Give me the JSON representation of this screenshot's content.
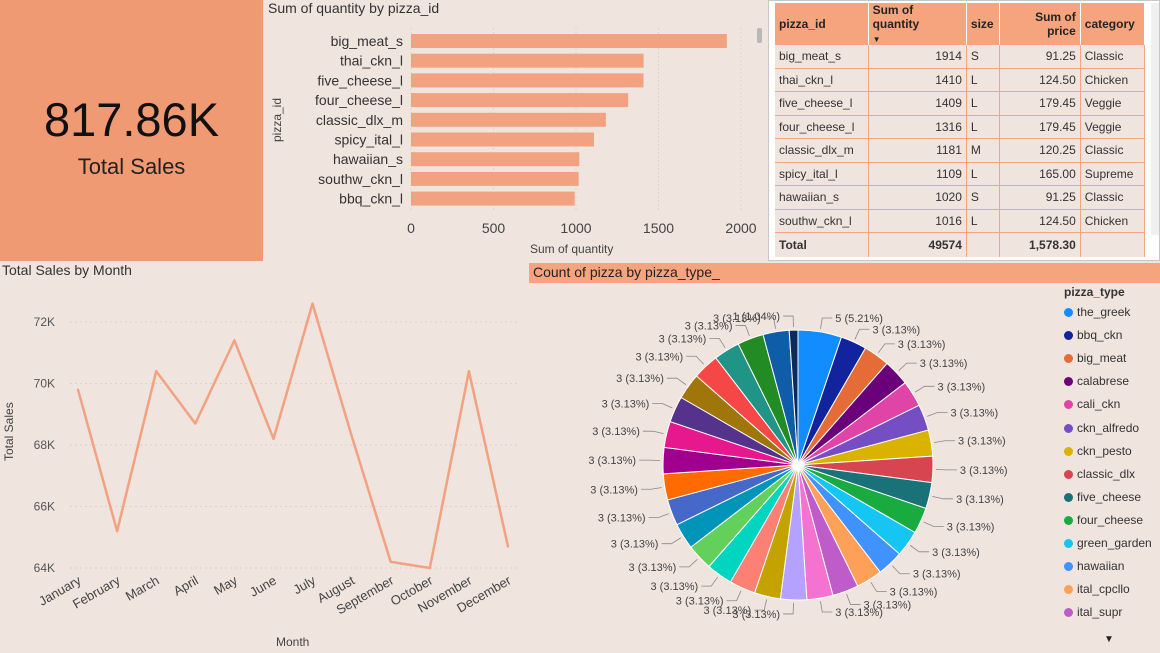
{
  "kpi": {
    "value": "817.86K",
    "label": "Total Sales"
  },
  "colors": {
    "accent": "#f09a73",
    "bar": "#f2a281",
    "line": "#f2a281",
    "header": "#f6a47e",
    "background": "#efe4de"
  },
  "bar_panel": {
    "title": "Sum of quantity by pizza_id"
  },
  "table": {
    "headers": [
      "pizza_id",
      "Sum of quantity",
      "size",
      "Sum of price",
      "category"
    ],
    "rows": [
      [
        "big_meat_s",
        "1914",
        "S",
        "91.25",
        "Classic"
      ],
      [
        "thai_ckn_l",
        "1410",
        "L",
        "124.50",
        "Chicken"
      ],
      [
        "five_cheese_l",
        "1409",
        "L",
        "179.45",
        "Veggie"
      ],
      [
        "four_cheese_l",
        "1316",
        "L",
        "179.45",
        "Veggie"
      ],
      [
        "classic_dlx_m",
        "1181",
        "M",
        "120.25",
        "Classic"
      ],
      [
        "spicy_ital_l",
        "1109",
        "L",
        "165.00",
        "Supreme"
      ],
      [
        "hawaiian_s",
        "1020",
        "S",
        "91.25",
        "Classic"
      ],
      [
        "southw_ckn_l",
        "1016",
        "L",
        "124.50",
        "Chicken"
      ]
    ],
    "total": {
      "label": "Total",
      "quantity": "49574",
      "price": "1,578.30"
    }
  },
  "line_panel": {
    "title": "Total Sales by Month"
  },
  "pie_panel": {
    "title": "Count of pizza by pizza_type_",
    "legend_title": "pizza_type",
    "legend_items": [
      {
        "name": "the_greek",
        "color": "#118dff"
      },
      {
        "name": "bbq_ckn",
        "color": "#12239e"
      },
      {
        "name": "big_meat",
        "color": "#e66c37"
      },
      {
        "name": "calabrese",
        "color": "#6b007b"
      },
      {
        "name": "cali_ckn",
        "color": "#e044a7"
      },
      {
        "name": "ckn_alfredo",
        "color": "#744ec2"
      },
      {
        "name": "ckn_pesto",
        "color": "#d9b300"
      },
      {
        "name": "classic_dlx",
        "color": "#d64550"
      },
      {
        "name": "five_cheese",
        "color": "#197278"
      },
      {
        "name": "four_cheese",
        "color": "#1aab40"
      },
      {
        "name": "green_garden",
        "color": "#15c6f4"
      },
      {
        "name": "hawaiian",
        "color": "#4092ff"
      },
      {
        "name": "ital_cpcllo",
        "color": "#ffa058"
      },
      {
        "name": "ital_supr",
        "color": "#be5dc9"
      }
    ]
  },
  "chart_data": [
    {
      "type": "bar",
      "title": "Sum of quantity by pizza_id",
      "xlabel": "Sum of quantity",
      "ylabel": "pizza_id",
      "categories": [
        "big_meat_s",
        "thai_ckn_l",
        "five_cheese_l",
        "four_cheese_l",
        "classic_dlx_m",
        "spicy_ital_l",
        "hawaiian_s",
        "southw_ckn_l",
        "bbq_ckn_l"
      ],
      "values": [
        1914,
        1410,
        1409,
        1316,
        1181,
        1109,
        1020,
        1016,
        992
      ],
      "xlim": [
        0,
        2000
      ],
      "xticks": [
        "0",
        "500",
        "1000",
        "1500",
        "2000"
      ],
      "grid": true
    },
    {
      "type": "line",
      "title": "Total Sales by Month",
      "xlabel": "Month",
      "ylabel": "Total Sales",
      "categories": [
        "January",
        "February",
        "March",
        "April",
        "May",
        "June",
        "July",
        "August",
        "September",
        "October",
        "November",
        "December"
      ],
      "values": [
        69800,
        65200,
        70400,
        68700,
        71400,
        68200,
        72600,
        68300,
        64200,
        64000,
        70400,
        64700
      ],
      "ylim": [
        64000,
        73000
      ],
      "yticks": [
        "64K",
        "66K",
        "68K",
        "70K",
        "72K"
      ],
      "grid": true
    },
    {
      "type": "pie",
      "title": "Count of pizza by pizza_type_",
      "slices": [
        {
          "value": 5,
          "label": "5 (5.21%)",
          "color": "#118dff"
        },
        {
          "value": 3,
          "label": "3 (3.13%)",
          "color": "#12239e"
        },
        {
          "value": 3,
          "label": "3 (3.13%)",
          "color": "#e66c37"
        },
        {
          "value": 3,
          "label": "3 (3.13%)",
          "color": "#6b007b"
        },
        {
          "value": 3,
          "label": "3 (3.13%)",
          "color": "#e044a7"
        },
        {
          "value": 3,
          "label": "3 (3.13%)",
          "color": "#744ec2"
        },
        {
          "value": 3,
          "label": "3 (3.13%)",
          "color": "#d9b300"
        },
        {
          "value": 3,
          "label": "3 (3.13%)",
          "color": "#d64550"
        },
        {
          "value": 3,
          "label": "3 (3.13%)",
          "color": "#197278"
        },
        {
          "value": 3,
          "label": "3 (3.13%)",
          "color": "#1aab40"
        },
        {
          "value": 3,
          "label": "3 (3.13%)",
          "color": "#15c6f4"
        },
        {
          "value": 3,
          "label": "3 (3.13%)",
          "color": "#4092ff"
        },
        {
          "value": 3,
          "label": "3 (3.13%)",
          "color": "#ffa058"
        },
        {
          "value": 3,
          "label": "3 (3.13%)",
          "color": "#be5dc9"
        },
        {
          "value": 3,
          "label": "3 (3.13%)",
          "color": "#f472d0"
        },
        {
          "value": 3,
          "label": "3 (3.13%)",
          "color": "#b5a1ff"
        },
        {
          "value": 3,
          "label": "3 (3.13%)",
          "color": "#c4a200"
        },
        {
          "value": 3,
          "label": "3 (3.13%)",
          "color": "#fd8074"
        },
        {
          "value": 3,
          "label": "3 (3.13%)",
          "color": "#00d5bf"
        },
        {
          "value": 3,
          "label": "3 (3.13%)",
          "color": "#62d05b"
        },
        {
          "value": 3,
          "label": "3 (3.13%)",
          "color": "#0094b8"
        },
        {
          "value": 3,
          "label": "3 (3.13%)",
          "color": "#4568c9"
        },
        {
          "value": 3,
          "label": "3 (3.13%)",
          "color": "#ff6b00"
        },
        {
          "value": 3,
          "label": "3 (3.13%)",
          "color": "#a0008d"
        },
        {
          "value": 3,
          "label": "3 (3.13%)",
          "color": "#e7178e"
        },
        {
          "value": 3,
          "label": "3 (3.13%)",
          "color": "#55328c"
        },
        {
          "value": 3,
          "label": "3 (3.13%)",
          "color": "#a07509"
        },
        {
          "value": 3,
          "label": "3 (3.13%)",
          "color": "#f64747"
        },
        {
          "value": 3,
          "label": "3 (3.13%)",
          "color": "#219488"
        },
        {
          "value": 3,
          "label": "3 (3.13%)",
          "color": "#238b23"
        },
        {
          "value": 3,
          "label": "3 (3.13%)",
          "color": "#0f5ca8"
        },
        {
          "value": 1,
          "label": "1 (1.04%)",
          "color": "#0c2a5c"
        }
      ]
    }
  ]
}
